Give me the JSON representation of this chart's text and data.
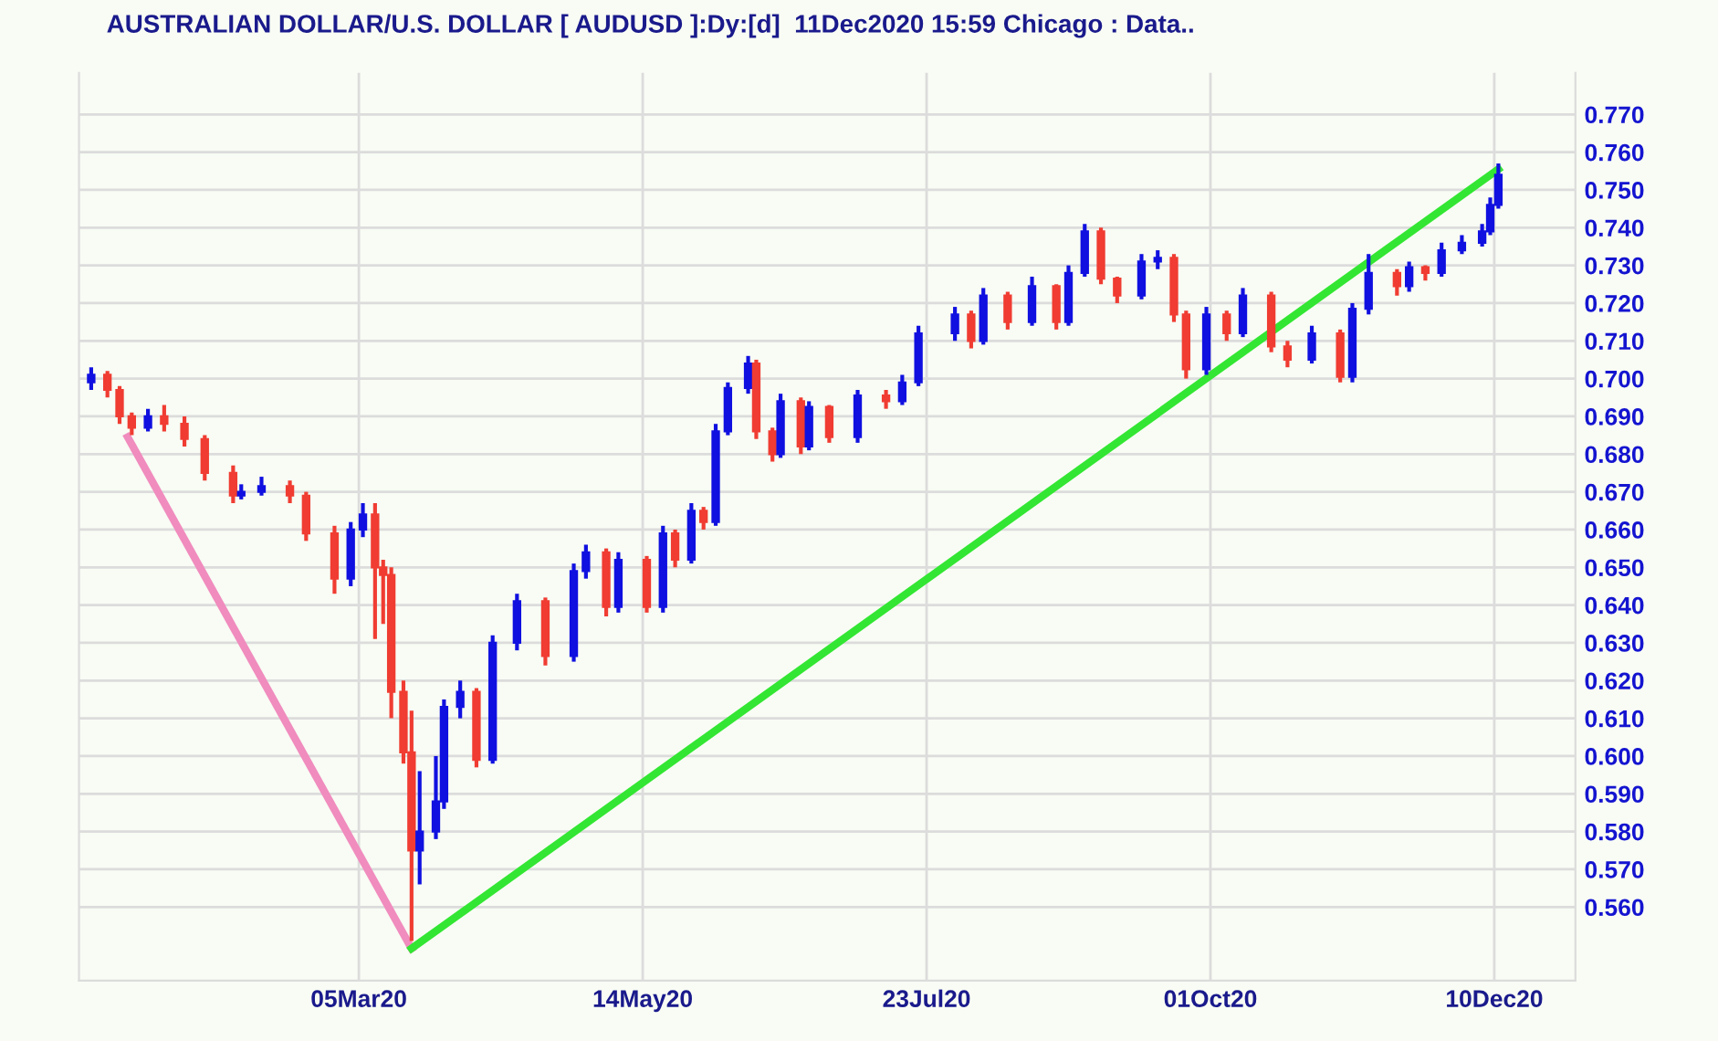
{
  "chart_data": {
    "type": "candlestick",
    "title": "AUSTRALIAN DOLLAR/U.S. DOLLAR [ AUDUSD ]:Dy:[d]  11Dec2020 15:59 Chicago : Data..",
    "x": [
      "2019-12-30",
      "2020-01-03",
      "2020-01-06",
      "2020-01-09",
      "2020-01-13",
      "2020-01-17",
      "2020-01-22",
      "2020-01-27",
      "2020-02-03",
      "2020-02-05",
      "2020-02-10",
      "2020-02-17",
      "2020-02-21",
      "2020-02-28",
      "2020-03-03",
      "2020-03-06",
      "2020-03-09",
      "2020-03-11",
      "2020-03-13",
      "2020-03-16",
      "2020-03-18",
      "2020-03-20",
      "2020-03-24",
      "2020-03-26",
      "2020-03-30",
      "2020-04-03",
      "2020-04-07",
      "2020-04-13",
      "2020-04-20",
      "2020-04-27",
      "2020-04-30",
      "2020-05-05",
      "2020-05-08",
      "2020-05-15",
      "2020-05-19",
      "2020-05-22",
      "2020-05-26",
      "2020-05-29",
      "2020-06-01",
      "2020-06-04",
      "2020-06-09",
      "2020-06-11",
      "2020-06-15",
      "2020-06-17",
      "2020-06-22",
      "2020-06-24",
      "2020-06-29",
      "2020-07-06",
      "2020-07-13",
      "2020-07-17",
      "2020-07-21",
      "2020-07-30",
      "2020-08-03",
      "2020-08-06",
      "2020-08-12",
      "2020-08-18",
      "2020-08-24",
      "2020-08-27",
      "2020-08-31",
      "2020-09-04",
      "2020-09-08",
      "2020-09-14",
      "2020-09-18",
      "2020-09-22",
      "2020-09-25",
      "2020-09-30",
      "2020-10-05",
      "2020-10-09",
      "2020-10-16",
      "2020-10-20",
      "2020-10-26",
      "2020-11-02",
      "2020-11-05",
      "2020-11-09",
      "2020-11-16",
      "2020-11-19",
      "2020-11-23",
      "2020-11-27",
      "2020-12-02",
      "2020-12-07",
      "2020-12-09",
      "2020-12-11"
    ],
    "ohlc": [
      [
        0.699,
        0.703,
        0.697,
        0.701
      ],
      [
        0.701,
        0.702,
        0.695,
        0.697
      ],
      [
        0.697,
        0.698,
        0.688,
        0.69
      ],
      [
        0.69,
        0.691,
        0.685,
        0.687
      ],
      [
        0.687,
        0.692,
        0.686,
        0.69
      ],
      [
        0.69,
        0.693,
        0.686,
        0.688
      ],
      [
        0.688,
        0.69,
        0.682,
        0.684
      ],
      [
        0.684,
        0.685,
        0.673,
        0.675
      ],
      [
        0.675,
        0.677,
        0.667,
        0.669
      ],
      [
        0.669,
        0.672,
        0.668,
        0.67
      ],
      [
        0.67,
        0.674,
        0.669,
        0.6715
      ],
      [
        0.6715,
        0.673,
        0.667,
        0.669
      ],
      [
        0.669,
        0.67,
        0.657,
        0.659
      ],
      [
        0.659,
        0.661,
        0.643,
        0.647
      ],
      [
        0.647,
        0.662,
        0.645,
        0.66
      ],
      [
        0.66,
        0.667,
        0.658,
        0.664
      ],
      [
        0.664,
        0.667,
        0.631,
        0.65
      ],
      [
        0.65,
        0.652,
        0.635,
        0.648
      ],
      [
        0.648,
        0.65,
        0.61,
        0.617
      ],
      [
        0.617,
        0.62,
        0.598,
        0.601
      ],
      [
        0.601,
        0.612,
        0.551,
        0.575
      ],
      [
        0.575,
        0.596,
        0.566,
        0.58
      ],
      [
        0.58,
        0.6,
        0.578,
        0.588
      ],
      [
        0.588,
        0.615,
        0.586,
        0.613
      ],
      [
        0.613,
        0.62,
        0.61,
        0.617
      ],
      [
        0.617,
        0.618,
        0.597,
        0.599
      ],
      [
        0.599,
        0.632,
        0.598,
        0.63
      ],
      [
        0.63,
        0.643,
        0.628,
        0.641
      ],
      [
        0.641,
        0.642,
        0.624,
        0.6265
      ],
      [
        0.6265,
        0.651,
        0.625,
        0.649
      ],
      [
        0.649,
        0.656,
        0.647,
        0.654
      ],
      [
        0.654,
        0.655,
        0.637,
        0.6395
      ],
      [
        0.6395,
        0.654,
        0.638,
        0.652
      ],
      [
        0.652,
        0.653,
        0.638,
        0.6395
      ],
      [
        0.6395,
        0.661,
        0.638,
        0.659
      ],
      [
        0.659,
        0.66,
        0.65,
        0.652
      ],
      [
        0.652,
        0.667,
        0.651,
        0.665
      ],
      [
        0.665,
        0.666,
        0.66,
        0.662
      ],
      [
        0.662,
        0.688,
        0.661,
        0.686
      ],
      [
        0.686,
        0.699,
        0.685,
        0.6975
      ],
      [
        0.6975,
        0.706,
        0.696,
        0.704
      ],
      [
        0.704,
        0.705,
        0.684,
        0.686
      ],
      [
        0.686,
        0.687,
        0.678,
        0.68
      ],
      [
        0.68,
        0.696,
        0.679,
        0.694
      ],
      [
        0.694,
        0.695,
        0.68,
        0.682
      ],
      [
        0.682,
        0.694,
        0.681,
        0.6925
      ],
      [
        0.6925,
        0.693,
        0.683,
        0.6845
      ],
      [
        0.6845,
        0.697,
        0.683,
        0.6955
      ],
      [
        0.6955,
        0.697,
        0.692,
        0.694
      ],
      [
        0.694,
        0.701,
        0.693,
        0.699
      ],
      [
        0.699,
        0.714,
        0.698,
        0.712
      ],
      [
        0.712,
        0.719,
        0.71,
        0.717
      ],
      [
        0.717,
        0.718,
        0.708,
        0.71
      ],
      [
        0.71,
        0.724,
        0.709,
        0.722
      ],
      [
        0.722,
        0.723,
        0.713,
        0.715
      ],
      [
        0.715,
        0.727,
        0.714,
        0.7245
      ],
      [
        0.7245,
        0.725,
        0.713,
        0.715
      ],
      [
        0.715,
        0.73,
        0.714,
        0.728
      ],
      [
        0.728,
        0.741,
        0.727,
        0.739
      ],
      [
        0.739,
        0.74,
        0.725,
        0.7265
      ],
      [
        0.7265,
        0.727,
        0.72,
        0.722
      ],
      [
        0.722,
        0.733,
        0.721,
        0.731
      ],
      [
        0.731,
        0.734,
        0.729,
        0.732
      ],
      [
        0.732,
        0.733,
        0.715,
        0.717
      ],
      [
        0.717,
        0.718,
        0.7,
        0.7025
      ],
      [
        0.7025,
        0.719,
        0.701,
        0.717
      ],
      [
        0.717,
        0.718,
        0.71,
        0.712
      ],
      [
        0.712,
        0.724,
        0.711,
        0.722
      ],
      [
        0.722,
        0.723,
        0.707,
        0.7085
      ],
      [
        0.7085,
        0.71,
        0.703,
        0.705
      ],
      [
        0.705,
        0.714,
        0.704,
        0.712
      ],
      [
        0.712,
        0.713,
        0.699,
        0.7005
      ],
      [
        0.7005,
        0.72,
        0.699,
        0.7185
      ],
      [
        0.7185,
        0.733,
        0.717,
        0.728
      ],
      [
        0.728,
        0.729,
        0.722,
        0.7245
      ],
      [
        0.7245,
        0.731,
        0.723,
        0.7295
      ],
      [
        0.7295,
        0.73,
        0.726,
        0.728
      ],
      [
        0.728,
        0.736,
        0.727,
        0.734
      ],
      [
        0.734,
        0.738,
        0.733,
        0.736
      ],
      [
        0.736,
        0.741,
        0.735,
        0.739
      ],
      [
        0.739,
        0.748,
        0.738,
        0.746
      ],
      [
        0.746,
        0.757,
        0.745,
        0.754
      ]
    ],
    "colors": [
      "#1010e0",
      "#f03c32",
      "#f03c32",
      "#f03c32",
      "#1010e0",
      "#f03c32",
      "#f03c32",
      "#f03c32",
      "#f03c32",
      "#1010e0",
      "#1010e0",
      "#f03c32",
      "#f03c32",
      "#f03c32",
      "#1010e0",
      "#1010e0",
      "#f03c32",
      "#f03c32",
      "#f03c32",
      "#f03c32",
      "#f03c32",
      "#1010e0",
      "#1010e0",
      "#1010e0",
      "#1010e0",
      "#f03c32",
      "#1010e0",
      "#1010e0",
      "#f03c32",
      "#1010e0",
      "#1010e0",
      "#f03c32",
      "#1010e0",
      "#f03c32",
      "#1010e0",
      "#f03c32",
      "#1010e0",
      "#f03c32",
      "#1010e0",
      "#1010e0",
      "#1010e0",
      "#f03c32",
      "#f03c32",
      "#1010e0",
      "#f03c32",
      "#1010e0",
      "#f03c32",
      "#1010e0",
      "#f03c32",
      "#1010e0",
      "#1010e0",
      "#1010e0",
      "#f03c32",
      "#1010e0",
      "#f03c32",
      "#1010e0",
      "#f03c32",
      "#1010e0",
      "#1010e0",
      "#f03c32",
      "#f03c32",
      "#1010e0",
      "#1010e0",
      "#f03c32",
      "#f03c32",
      "#1010e0",
      "#f03c32",
      "#1010e0",
      "#f03c32",
      "#f03c32",
      "#1010e0",
      "#f03c32",
      "#1010e0",
      "#1010e0",
      "#f03c32",
      "#1010e0",
      "#f03c32",
      "#1010e0",
      "#1010e0",
      "#1010e0",
      "#1010e0",
      "#1010e0"
    ],
    "series": [
      {
        "type": "line",
        "color": "#f08cbe",
        "x": [
          "2020-01-08",
          "2020-03-18"
        ],
        "values": [
          0.6845,
          0.549
        ]
      },
      {
        "type": "line",
        "color": "#33e633",
        "x": [
          "2020-03-18",
          "2020-12-11"
        ],
        "values": [
          0.549,
          0.7555
        ]
      }
    ],
    "xlim": [
      "2019-12-27",
      "2020-12-30"
    ],
    "xticks": [
      {
        "value": "2020-03-05",
        "label": "05Mar20"
      },
      {
        "value": "2020-05-14",
        "label": "14May20"
      },
      {
        "value": "2020-07-23",
        "label": "23Jul20"
      },
      {
        "value": "2020-10-01",
        "label": "01Oct20"
      },
      {
        "value": "2020-12-10",
        "label": "10Dec20"
      }
    ],
    "ylim": [
      0.5405,
      0.781
    ],
    "yticks": [
      {
        "value": 0.56,
        "label": "0.560"
      },
      {
        "value": 0.57,
        "label": "0.570"
      },
      {
        "value": 0.58,
        "label": "0.580"
      },
      {
        "value": 0.59,
        "label": "0.590"
      },
      {
        "value": 0.6,
        "label": "0.600"
      },
      {
        "value": 0.61,
        "label": "0.610"
      },
      {
        "value": 0.62,
        "label": "0.620"
      },
      {
        "value": 0.63,
        "label": "0.630"
      },
      {
        "value": 0.64,
        "label": "0.640"
      },
      {
        "value": 0.65,
        "label": "0.650"
      },
      {
        "value": 0.66,
        "label": "0.660"
      },
      {
        "value": 0.67,
        "label": "0.670"
      },
      {
        "value": 0.68,
        "label": "0.680"
      },
      {
        "value": 0.69,
        "label": "0.690"
      },
      {
        "value": 0.7,
        "label": "0.700"
      },
      {
        "value": 0.71,
        "label": "0.710"
      },
      {
        "value": 0.72,
        "label": "0.720"
      },
      {
        "value": 0.73,
        "label": "0.730"
      },
      {
        "value": 0.74,
        "label": "0.740"
      },
      {
        "value": 0.75,
        "label": "0.750"
      },
      {
        "value": 0.76,
        "label": "0.760"
      },
      {
        "value": 0.77,
        "label": "0.770"
      }
    ],
    "grid": true
  }
}
